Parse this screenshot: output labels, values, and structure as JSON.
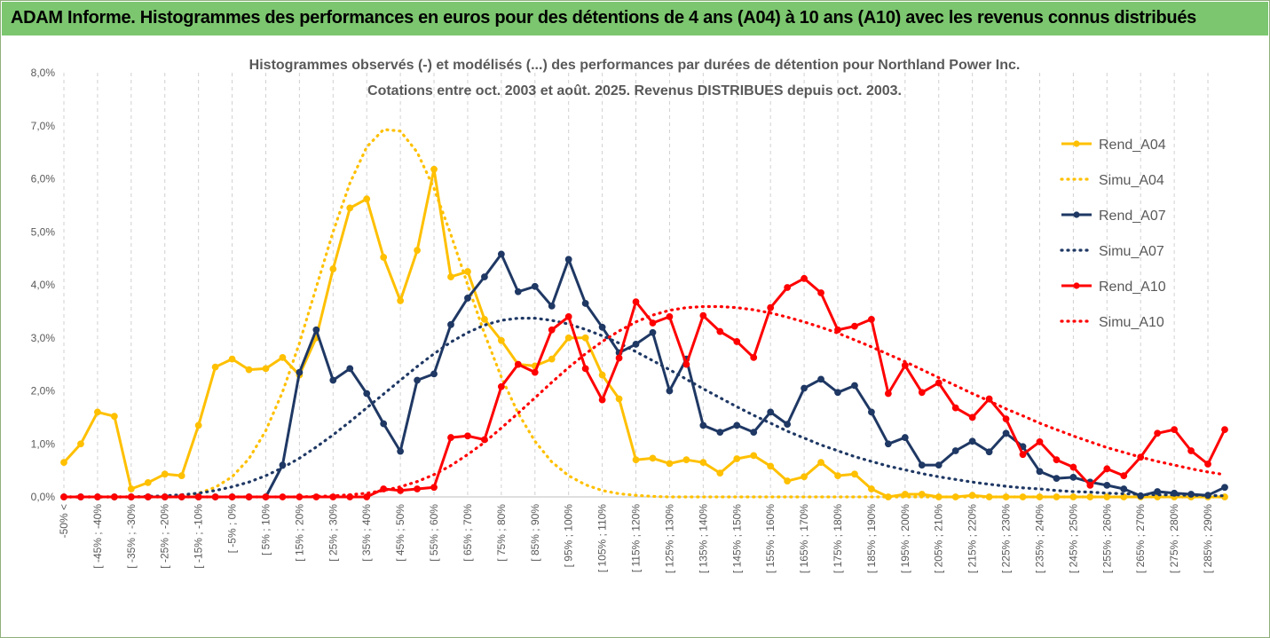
{
  "banner": {
    "title": "ADAM Informe. Histogrammes des performances en euros pour des détentions de 4 ans (A04) à 10 ans (A10) avec les revenus connus distribués"
  },
  "chart_data": {
    "type": "line",
    "title": "Histogrammes observés (-) et modélisés (...) des performances par durées de détention pour Northland Power Inc.",
    "subtitle": "Cotations entre oct. 2003 et août. 2025.  Revenus DISTRIBUES depuis oct. 2003.",
    "xlabel": "",
    "ylabel": "",
    "ylim": [
      0,
      8
    ],
    "y_ticks": [
      "0,0%",
      "1,0%",
      "2,0%",
      "3,0%",
      "4,0%",
      "5,0%",
      "6,0%",
      "7,0%",
      "8,0%"
    ],
    "x_tick_labels": [
      "-50% <",
      "[ -45% ; -40%",
      "[ -35% ; -30%",
      "[ -25% ; -20%",
      "[ -15% ; -10%",
      "[ -5% ; 0%",
      "[ 5% ; 10%",
      "[ 15% ; 20%",
      "[ 25% ; 30%",
      "[ 35% ; 40%",
      "[ 45% ; 50%",
      "[ 55% ; 60%",
      "[ 65% ; 70%",
      "[ 75% ; 80%",
      "[ 85% ; 90%",
      "[ 95% ; 100%",
      "[ 105% ; 110%",
      "[ 115% ; 120%",
      "[ 125% ; 130%",
      "[ 135% ; 140%",
      "[ 145% ; 150%",
      "[ 155% ; 160%",
      "[ 165% ; 170%",
      "[ 175% ; 180%",
      "[ 185% ; 190%",
      "[ 195% ; 200%",
      "[ 205% ; 210%",
      "[ 215% ; 220%",
      "[ 225% ; 230%",
      "[ 235% ; 240%",
      "[ 245% ; 250%",
      "[ 255% ; 260%",
      "[ 265% ; 270%",
      "[ 275% ; 280%",
      "[ 285% ; 290%"
    ],
    "x_tick_every": 2,
    "n_points": 70,
    "grid": "vertical-dashed",
    "legend_position": "right",
    "series": [
      {
        "name": "Rend_A04",
        "style": "solid-markers",
        "color": "#ffc000",
        "values": [
          0.65,
          1.0,
          1.6,
          1.52,
          0.15,
          0.27,
          0.43,
          0.4,
          1.35,
          2.45,
          2.6,
          2.4,
          2.42,
          2.63,
          2.3,
          3.0,
          4.3,
          5.45,
          5.62,
          4.52,
          3.7,
          4.65,
          6.18,
          4.15,
          4.25,
          3.35,
          2.95,
          2.5,
          2.47,
          2.6,
          3.0,
          3.0,
          2.3,
          1.85,
          0.7,
          0.73,
          0.63,
          0.7,
          0.65,
          0.45,
          0.72,
          0.78,
          0.58,
          0.3,
          0.38,
          0.65,
          0.4,
          0.43,
          0.15,
          0.0,
          0.05,
          0.05,
          0.0,
          0.0,
          0.03,
          0.0,
          0.0,
          0.0,
          0.0,
          0.0,
          0.0,
          0.0,
          0.0,
          0.0,
          0.0,
          0.0,
          0.0,
          0.0,
          0.0,
          0.0
        ]
      },
      {
        "name": "Simu_A04",
        "style": "dotted",
        "color": "#ffc000",
        "values": [
          0.0,
          0.0,
          0.0,
          0.0,
          0.0,
          0.0,
          0.0,
          0.02,
          0.07,
          0.18,
          0.38,
          0.72,
          1.25,
          1.98,
          2.9,
          3.95,
          5.0,
          5.92,
          6.6,
          6.93,
          6.9,
          6.5,
          5.82,
          4.95,
          4.0,
          3.08,
          2.26,
          1.58,
          1.05,
          0.66,
          0.4,
          0.23,
          0.12,
          0.06,
          0.03,
          0.01,
          0.0,
          0.0,
          0.0,
          0.0,
          0.0,
          0.0,
          0.0,
          0.0,
          0.0,
          0.0,
          0.0,
          0.0,
          0.0,
          0.0,
          0.0,
          0.0,
          0.0,
          0.0,
          0.0,
          0.0,
          0.0,
          0.0,
          0.0,
          0.0,
          0.0,
          0.0,
          0.0,
          0.0,
          0.0,
          0.0,
          0.0,
          0.0,
          0.0,
          0.0
        ]
      },
      {
        "name": "Rend_A07",
        "style": "solid-markers",
        "color": "#1f3864",
        "values": [
          0.0,
          0.0,
          0.0,
          0.0,
          0.0,
          0.0,
          0.0,
          0.0,
          0.0,
          0.0,
          0.0,
          0.0,
          0.0,
          0.6,
          2.35,
          3.15,
          2.2,
          2.42,
          1.95,
          1.38,
          0.86,
          2.2,
          2.32,
          3.25,
          3.75,
          4.15,
          4.58,
          3.87,
          3.97,
          3.6,
          4.48,
          3.65,
          3.2,
          2.72,
          2.88,
          3.1,
          2.0,
          2.6,
          1.35,
          1.22,
          1.35,
          1.22,
          1.6,
          1.37,
          2.05,
          2.22,
          1.97,
          2.1,
          1.6,
          1.0,
          1.12,
          0.6,
          0.6,
          0.87,
          1.05,
          0.85,
          1.2,
          0.95,
          0.48,
          0.35,
          0.37,
          0.28,
          0.22,
          0.15,
          0.02,
          0.1,
          0.07,
          0.05,
          0.03,
          0.18
        ]
      },
      {
        "name": "Simu_A07",
        "style": "dotted",
        "color": "#1f3864",
        "values": [
          0.0,
          0.0,
          0.0,
          0.0,
          0.0,
          0.01,
          0.02,
          0.04,
          0.07,
          0.12,
          0.19,
          0.28,
          0.4,
          0.55,
          0.73,
          0.94,
          1.17,
          1.42,
          1.68,
          1.94,
          2.2,
          2.46,
          2.7,
          2.92,
          3.1,
          3.24,
          3.33,
          3.37,
          3.37,
          3.33,
          3.26,
          3.16,
          3.04,
          2.9,
          2.74,
          2.57,
          2.4,
          2.22,
          2.04,
          1.87,
          1.7,
          1.54,
          1.39,
          1.24,
          1.11,
          0.98,
          0.87,
          0.76,
          0.67,
          0.58,
          0.51,
          0.44,
          0.38,
          0.33,
          0.28,
          0.24,
          0.2,
          0.17,
          0.15,
          0.12,
          0.1,
          0.09,
          0.07,
          0.06,
          0.05,
          0.04,
          0.04,
          0.03,
          0.03,
          0.02
        ]
      },
      {
        "name": "Rend_A10",
        "style": "solid-markers",
        "color": "#ff0000",
        "values": [
          0.0,
          0.0,
          0.0,
          0.0,
          0.0,
          0.0,
          0.0,
          0.0,
          0.0,
          0.0,
          0.0,
          0.0,
          0.0,
          0.0,
          0.0,
          0.0,
          0.0,
          0.0,
          0.0,
          0.15,
          0.12,
          0.15,
          0.18,
          1.12,
          1.15,
          1.08,
          2.08,
          2.5,
          2.35,
          3.15,
          3.4,
          2.42,
          1.83,
          2.62,
          3.68,
          3.28,
          3.4,
          2.5,
          3.42,
          3.12,
          2.93,
          2.63,
          3.57,
          3.95,
          4.12,
          3.85,
          3.15,
          3.22,
          3.35,
          1.95,
          2.48,
          1.97,
          2.15,
          1.68,
          1.5,
          1.85,
          1.47,
          0.8,
          1.04,
          0.7,
          0.56,
          0.22,
          0.53,
          0.4,
          0.75,
          1.2,
          1.27,
          0.87,
          0.62,
          1.27
        ]
      },
      {
        "name": "Simu_A10",
        "style": "dotted",
        "color": "#ff0000",
        "values": [
          0.0,
          0.0,
          0.0,
          0.0,
          0.0,
          0.0,
          0.0,
          0.0,
          0.0,
          0.0,
          0.0,
          0.0,
          0.0,
          0.0,
          0.0,
          0.01,
          0.02,
          0.04,
          0.07,
          0.12,
          0.19,
          0.29,
          0.42,
          0.59,
          0.8,
          1.03,
          1.3,
          1.58,
          1.87,
          2.16,
          2.44,
          2.7,
          2.93,
          3.13,
          3.3,
          3.43,
          3.52,
          3.57,
          3.59,
          3.59,
          3.57,
          3.53,
          3.47,
          3.39,
          3.3,
          3.2,
          3.09,
          2.96,
          2.83,
          2.69,
          2.55,
          2.4,
          2.25,
          2.1,
          1.95,
          1.81,
          1.66,
          1.53,
          1.39,
          1.27,
          1.15,
          1.04,
          0.93,
          0.84,
          0.75,
          0.67,
          0.6,
          0.53,
          0.47,
          0.42
        ]
      }
    ]
  }
}
